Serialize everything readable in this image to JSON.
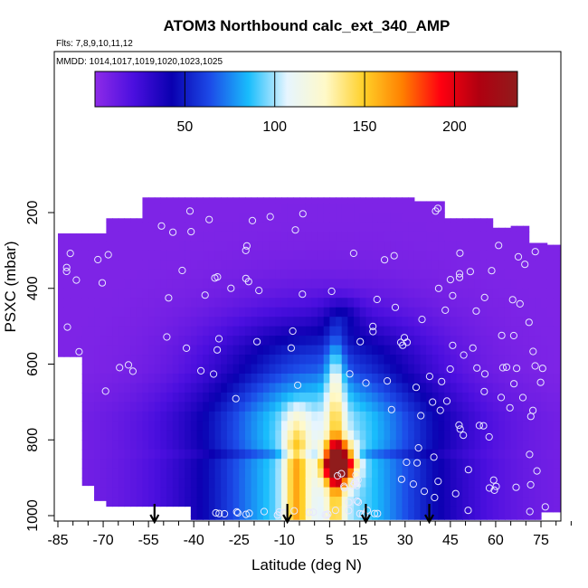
{
  "chart_data": {
    "type": "heatmap",
    "title": "ATOM3 Northbound calc_ext_340_AMP",
    "subtitle_flights": "Flts: 7,8,9,10,11,12",
    "subtitle_dates": "MMDD: 1014,1017,1019,1020,1023,1025",
    "xlabel": "Latitude (deg N)",
    "ylabel": "PSXC (mbar)",
    "xlim": [
      -85,
      85
    ],
    "ylim": [
      1000,
      100
    ],
    "x_ticks": [
      -85,
      -70,
      -55,
      -40,
      -25,
      -10,
      5,
      15,
      30,
      45,
      60,
      75
    ],
    "x_tick_labels": [
      "-85",
      "-70",
      "-55",
      "-40",
      "-25",
      "-10",
      "5",
      "15",
      "30",
      "45",
      "60",
      "75"
    ],
    "y_ticks": [
      200,
      400,
      600,
      800,
      1000
    ],
    "y_tick_labels": [
      "200",
      "400",
      "600",
      "800",
      "1000"
    ],
    "colorbar": {
      "range": [
        0,
        235
      ],
      "ticks": [
        50,
        100,
        150,
        200
      ],
      "tick_labels": [
        "50",
        "100",
        "150",
        "200"
      ],
      "colors": [
        "#8e2be8",
        "#4b0fdf",
        "#0a00b0",
        "#1c4be8",
        "#19bdfc",
        "#e6f5ff",
        "#fff9c8",
        "#ffd028",
        "#ff8000",
        "#ff0010",
        "#b00010",
        "#901c1c"
      ]
    },
    "arrows_lat": [
      -53,
      -9,
      17,
      38
    ],
    "heatmap_summary": {
      "peak_value": 230,
      "peak_lat_range": [
        4,
        13
      ],
      "peak_pressure_range": [
        820,
        900
      ],
      "background_value": 5
    },
    "circles_color": "#e8e8ff"
  }
}
